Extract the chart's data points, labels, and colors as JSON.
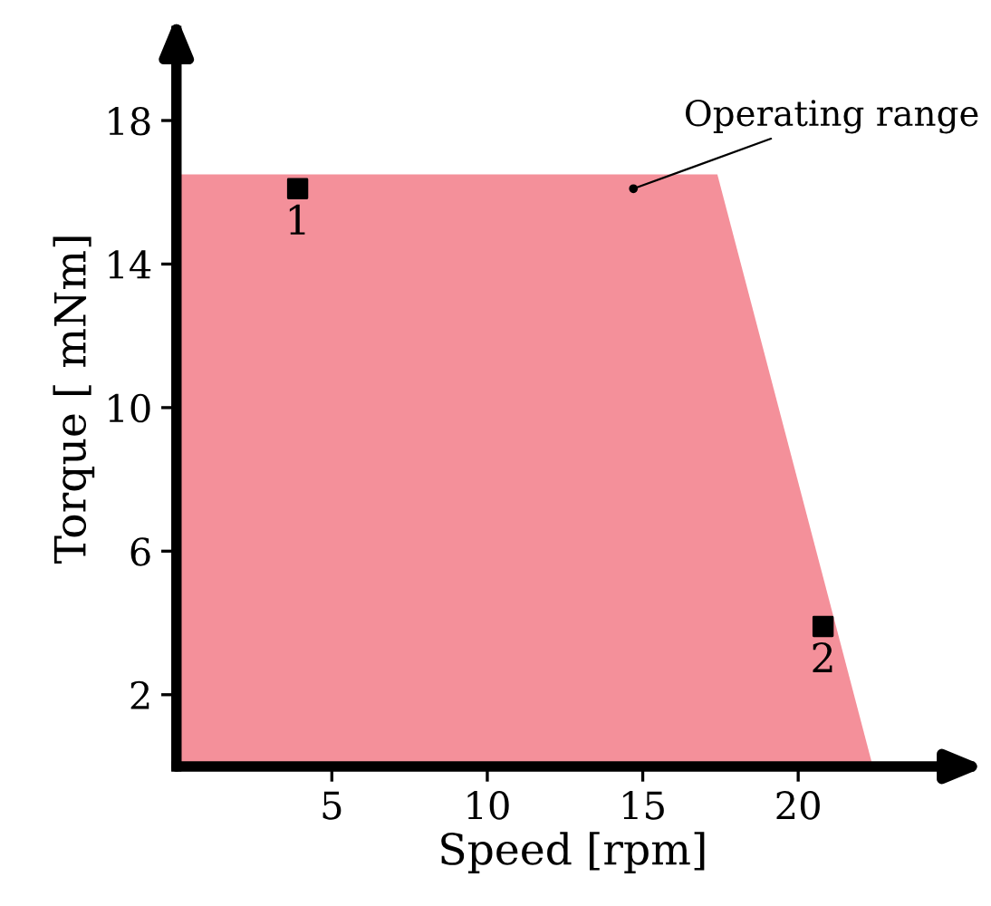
{
  "chart_data": {
    "type": "area",
    "xlabel": "Speed [rpm]",
    "ylabel": "Torque [ mNm]",
    "xlim": [
      0,
      25.5
    ],
    "ylim": [
      0,
      20.5
    ],
    "xticks": [
      5,
      10,
      15,
      20
    ],
    "yticks": [
      2,
      6,
      10,
      14,
      18
    ],
    "grid": false,
    "series": [
      {
        "color": "#f4909a",
        "x": [
          0,
          17.4,
          22.4
        ],
        "values": [
          16.5,
          16.5,
          0
        ]
      },
      {
        "type": "scatter",
        "name": "1",
        "color": "#000000",
        "marker": "square",
        "x": [
          3.9
        ],
        "values": [
          16.1
        ]
      },
      {
        "type": "scatter",
        "name": "2",
        "color": "#000000",
        "marker": "square",
        "x": [
          20.8
        ],
        "values": [
          3.9
        ]
      }
    ],
    "annotations": [
      {
        "text": "Operating range",
        "x": 14.7,
        "y": 16.1
      }
    ]
  }
}
